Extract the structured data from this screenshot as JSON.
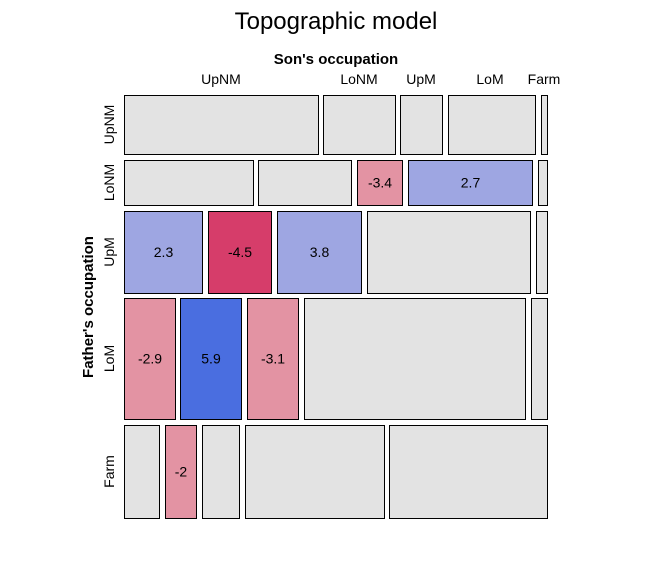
{
  "chart_data": {
    "type": "mosaic",
    "title": "Topographic model",
    "xlabel": "Son's occupation",
    "ylabel": "Father's occupation",
    "col_categories": [
      "UpNM",
      "LoNM",
      "UpM",
      "LoM",
      "Farm"
    ],
    "row_categories": [
      "UpNM",
      "LoNM",
      "UpM",
      "LoM",
      "Farm"
    ],
    "residual_colors": {
      "neutral": "#e3e3e3",
      "pos_weak": "#9ea6e2",
      "pos_strong": "#4a6ee0",
      "neg_weak": "#e393a3",
      "neg_strong": "#d63d6a"
    },
    "cells": [
      {
        "row": "UpNM",
        "col": "UpNM",
        "residual": null
      },
      {
        "row": "UpNM",
        "col": "LoNM",
        "residual": null
      },
      {
        "row": "UpNM",
        "col": "UpM",
        "residual": null
      },
      {
        "row": "UpNM",
        "col": "LoM",
        "residual": null
      },
      {
        "row": "UpNM",
        "col": "Farm",
        "residual": null
      },
      {
        "row": "LoNM",
        "col": "UpNM",
        "residual": null
      },
      {
        "row": "LoNM",
        "col": "LoNM",
        "residual": null
      },
      {
        "row": "LoNM",
        "col": "UpM",
        "residual": -3.4
      },
      {
        "row": "LoNM",
        "col": "LoM",
        "residual": 2.7
      },
      {
        "row": "LoNM",
        "col": "Farm",
        "residual": null
      },
      {
        "row": "UpM",
        "col": "UpNM",
        "residual": 2.3
      },
      {
        "row": "UpM",
        "col": "LoNM",
        "residual": -4.5
      },
      {
        "row": "UpM",
        "col": "UpM",
        "residual": 3.8
      },
      {
        "row": "UpM",
        "col": "LoM",
        "residual": null
      },
      {
        "row": "UpM",
        "col": "Farm",
        "residual": null
      },
      {
        "row": "LoM",
        "col": "UpNM",
        "residual": -2.9
      },
      {
        "row": "LoM",
        "col": "LoNM",
        "residual": 5.9
      },
      {
        "row": "LoM",
        "col": "UpM",
        "residual": -3.1
      },
      {
        "row": "LoM",
        "col": "LoM",
        "residual": null
      },
      {
        "row": "LoM",
        "col": "Farm",
        "residual": null
      },
      {
        "row": "Farm",
        "col": "UpNM",
        "residual": null
      },
      {
        "row": "Farm",
        "col": "LoNM",
        "residual": -2
      },
      {
        "row": "Farm",
        "col": "UpM",
        "residual": null
      },
      {
        "row": "Farm",
        "col": "LoM",
        "residual": null
      },
      {
        "row": "Farm",
        "col": "Farm",
        "residual": null
      }
    ]
  }
}
